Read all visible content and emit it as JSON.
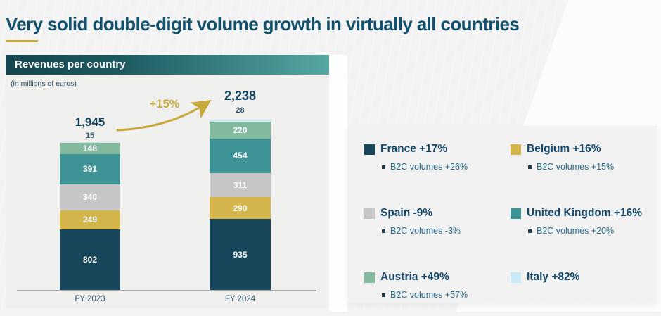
{
  "slide": {
    "title": "Very solid double-digit volume growth in virtually all countries"
  },
  "chart_panel": {
    "header": "Revenues per country",
    "units": "(in millions of euros)",
    "growth_annotation": "+15%"
  },
  "chart_data": {
    "type": "bar",
    "stacked": true,
    "title": "Revenues per country",
    "units_label": "(in millions of euros)",
    "categories": [
      "FY 2023",
      "FY 2024"
    ],
    "totals": [
      1945,
      2238
    ],
    "totals_display": [
      "1,945",
      "2,238"
    ],
    "top_values_display": [
      "15",
      "28"
    ],
    "growth_annotation": "+15%",
    "series": [
      {
        "name": "France",
        "color": "#18475c",
        "values": [
          802,
          935
        ]
      },
      {
        "name": "Belgium",
        "color": "#d3b54b",
        "values": [
          249,
          290
        ]
      },
      {
        "name": "Spain",
        "color": "#c5c6c5",
        "values": [
          340,
          311
        ]
      },
      {
        "name": "United Kingdom",
        "color": "#3d9395",
        "values": [
          391,
          454
        ]
      },
      {
        "name": "Austria",
        "color": "#83ba9d",
        "values": [
          148,
          220
        ]
      },
      {
        "name": "Italy",
        "color": "#c9eaf4",
        "values": [
          15,
          28
        ]
      }
    ]
  },
  "legend": {
    "items": [
      {
        "label": "France +17%",
        "sub": "B2C volumes +26%",
        "color": "#18475c"
      },
      {
        "label": "Belgium +16%",
        "sub": "B2C volumes +15%",
        "color": "#d3b54b"
      },
      {
        "label": "Spain -9%",
        "sub": "B2C volumes -3%",
        "color": "#c5c6c5"
      },
      {
        "label": "United Kingdom +16%",
        "sub": "B2C volumes +20%",
        "color": "#3d9395"
      },
      {
        "label": "Austria +49%",
        "sub": "B2C volumes +57%",
        "color": "#83ba9d"
      },
      {
        "label": "Italy +82%",
        "sub": "",
        "color": "#c9eaf4"
      }
    ]
  },
  "colors": {
    "accent_gold": "#c9a83e",
    "title_text": "#12516e",
    "header_gradient_left": "#16444f",
    "header_gradient_right": "#55a7a2"
  }
}
